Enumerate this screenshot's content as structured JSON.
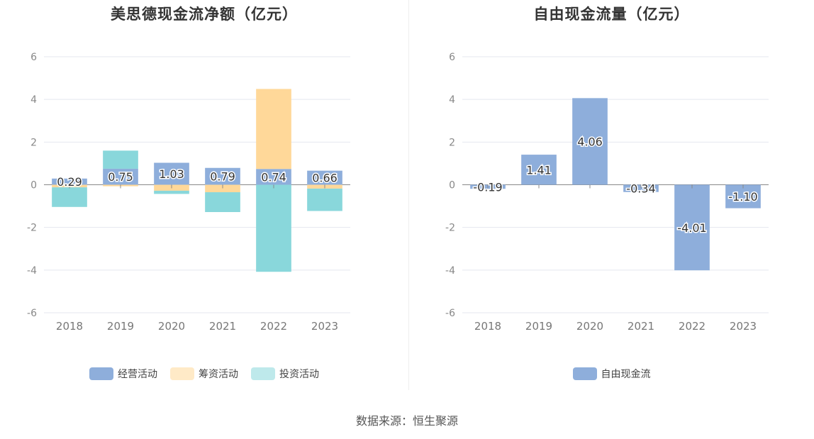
{
  "source_text": "数据来源：恒生聚源",
  "chart_data": [
    {
      "type": "bar",
      "stacked": true,
      "title": "美思德现金流净额（亿元）",
      "categories": [
        "2018",
        "2019",
        "2020",
        "2021",
        "2022",
        "2023"
      ],
      "ylim": [
        -6,
        6
      ],
      "yticks": [
        6,
        4,
        2,
        0,
        -2,
        -4,
        -6
      ],
      "grid": true,
      "legend_position": "bottom",
      "series": [
        {
          "name": "经营活动",
          "color": "#8eaedb",
          "values": [
            0.29,
            0.75,
            1.03,
            0.79,
            0.74,
            0.66
          ],
          "labels": [
            "0.29",
            "0.75",
            "1.03",
            "0.79",
            "0.74",
            "0.66"
          ]
        },
        {
          "name": "筹资活动",
          "color": "#ffd899",
          "values": [
            -0.12,
            -0.07,
            -0.28,
            -0.35,
            3.75,
            -0.18
          ]
        },
        {
          "name": "投资活动",
          "color": "#89d7db",
          "values": [
            -0.92,
            0.85,
            -0.15,
            -0.93,
            -4.08,
            -1.05
          ]
        }
      ]
    },
    {
      "type": "bar",
      "title": "自由现金流量（亿元）",
      "categories": [
        "2018",
        "2019",
        "2020",
        "2021",
        "2022",
        "2023"
      ],
      "ylim": [
        -6,
        6
      ],
      "yticks": [
        6,
        4,
        2,
        0,
        -2,
        -4,
        -6
      ],
      "grid": true,
      "legend_position": "bottom",
      "series": [
        {
          "name": "自由现金流",
          "color": "#8eaedb",
          "values": [
            -0.19,
            1.41,
            4.06,
            -0.34,
            -4.01,
            -1.1
          ],
          "labels": [
            "-0.19",
            "1.41",
            "4.06",
            "-0.34",
            "-4.01",
            "-1.10"
          ]
        }
      ]
    }
  ]
}
